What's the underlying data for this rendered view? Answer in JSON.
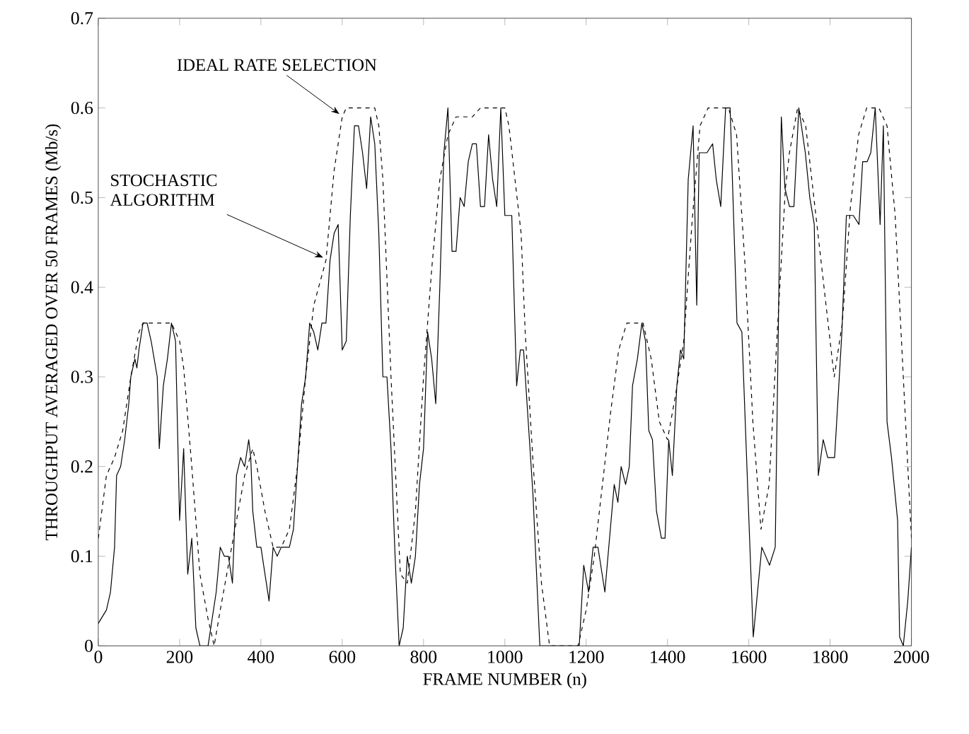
{
  "chart_data": {
    "type": "line",
    "xlabel": "FRAME NUMBER (n)",
    "ylabel": "THROUGHPUT AVERAGED OVER 50 FRAMES (Mb/s)",
    "xlim": [
      0,
      2000
    ],
    "ylim": [
      0,
      0.7
    ],
    "xticks": [
      0,
      200,
      400,
      600,
      800,
      1000,
      1200,
      1400,
      1600,
      1800,
      2000
    ],
    "yticks": [
      0,
      0.1,
      0.2,
      0.3,
      0.4,
      0.5,
      0.6,
      0.7
    ],
    "grid": false,
    "marker": "none",
    "annotations": [
      {
        "text": "IDEAL RATE SELECTION",
        "x": 600,
        "y": 0.59
      },
      {
        "text": "STOCHASTIC\nALGORITHM",
        "x": 560,
        "y": 0.43
      }
    ],
    "series": [
      {
        "color": "#000000",
        "line_style": "solid",
        "x": [
          0,
          20,
          30,
          40,
          45,
          55,
          65,
          75,
          80,
          90,
          95,
          100,
          110,
          120,
          130,
          145,
          150,
          160,
          170,
          180,
          190,
          200,
          210,
          220,
          230,
          240,
          250,
          270,
          290,
          300,
          310,
          320,
          330,
          340,
          350,
          360,
          370,
          375,
          380,
          390,
          400,
          420,
          430,
          440,
          450,
          470,
          480,
          490,
          500,
          510,
          520,
          530,
          540,
          550,
          560,
          570,
          580,
          590,
          600,
          610,
          620,
          630,
          640,
          650,
          660,
          670,
          680,
          690,
          700,
          710,
          720,
          730,
          740,
          750,
          760,
          770,
          780,
          790,
          800,
          810,
          820,
          830,
          840,
          850,
          860,
          870,
          880,
          890,
          900,
          910,
          920,
          930,
          940,
          950,
          960,
          970,
          980,
          990,
          1000,
          1017,
          1029,
          1038,
          1046,
          1069,
          1086,
          1183,
          1194,
          1206,
          1217,
          1229,
          1246,
          1269,
          1278,
          1286,
          1297,
          1306,
          1314,
          1326,
          1337,
          1346,
          1354,
          1363,
          1373,
          1385,
          1394,
          1403,
          1412,
          1423,
          1432,
          1440,
          1451,
          1463,
          1472,
          1478,
          1497,
          1511,
          1520,
          1531,
          1543,
          1554,
          1571,
          1583,
          1611,
          1632,
          1651,
          1665,
          1680,
          1689,
          1700,
          1711,
          1723,
          1739,
          1750,
          1761,
          1771,
          1783,
          1794,
          1811,
          1829,
          1840,
          1857,
          1871,
          1880,
          1891,
          1900,
          1911,
          1923,
          1931,
          1940,
          1951,
          1966,
          1971,
          1980,
          1991,
          2000
        ],
        "values": [
          0.025,
          0.04,
          0.06,
          0.11,
          0.19,
          0.2,
          0.23,
          0.27,
          0.3,
          0.32,
          0.31,
          0.33,
          0.36,
          0.36,
          0.34,
          0.3,
          0.22,
          0.29,
          0.32,
          0.36,
          0.34,
          0.14,
          0.22,
          0.08,
          0.12,
          0.02,
          0.0,
          0.0,
          0.06,
          0.11,
          0.1,
          0.1,
          0.07,
          0.19,
          0.21,
          0.2,
          0.23,
          0.21,
          0.15,
          0.11,
          0.11,
          0.05,
          0.11,
          0.1,
          0.11,
          0.11,
          0.13,
          0.2,
          0.27,
          0.3,
          0.36,
          0.35,
          0.33,
          0.36,
          0.36,
          0.43,
          0.46,
          0.47,
          0.33,
          0.34,
          0.48,
          0.58,
          0.58,
          0.55,
          0.51,
          0.59,
          0.56,
          0.46,
          0.3,
          0.3,
          0.22,
          0.1,
          0.0,
          0.02,
          0.1,
          0.07,
          0.1,
          0.18,
          0.22,
          0.35,
          0.32,
          0.27,
          0.4,
          0.55,
          0.6,
          0.44,
          0.44,
          0.5,
          0.49,
          0.54,
          0.56,
          0.56,
          0.49,
          0.49,
          0.57,
          0.52,
          0.49,
          0.6,
          0.48,
          0.48,
          0.29,
          0.33,
          0.33,
          0.17,
          0.0,
          0.0,
          0.09,
          0.06,
          0.11,
          0.11,
          0.06,
          0.18,
          0.16,
          0.2,
          0.18,
          0.2,
          0.29,
          0.32,
          0.36,
          0.34,
          0.24,
          0.23,
          0.15,
          0.12,
          0.12,
          0.23,
          0.19,
          0.29,
          0.33,
          0.32,
          0.52,
          0.58,
          0.38,
          0.55,
          0.55,
          0.56,
          0.52,
          0.49,
          0.6,
          0.6,
          0.36,
          0.35,
          0.01,
          0.11,
          0.09,
          0.11,
          0.59,
          0.51,
          0.49,
          0.49,
          0.6,
          0.55,
          0.5,
          0.47,
          0.19,
          0.23,
          0.21,
          0.21,
          0.35,
          0.48,
          0.48,
          0.47,
          0.54,
          0.54,
          0.55,
          0.6,
          0.47,
          0.58,
          0.25,
          0.21,
          0.14,
          0.01,
          0.0,
          0.05,
          0.11
        ]
      },
      {
        "color": "#000000",
        "line_style": "dashed",
        "x": [
          0,
          20,
          30,
          40,
          60,
          80,
          100,
          110,
          180,
          200,
          210,
          230,
          250,
          270,
          285,
          300,
          320,
          340,
          360,
          380,
          390,
          410,
          430,
          450,
          470,
          490,
          510,
          530,
          560,
          580,
          600,
          610,
          680,
          690,
          700,
          720,
          743,
          760,
          780,
          800,
          820,
          840,
          860,
          880,
          920,
          940,
          1000,
          1010,
          1030,
          1040,
          1050,
          1070,
          1090,
          1110,
          1180,
          1200,
          1220,
          1240,
          1260,
          1280,
          1300,
          1340,
          1360,
          1380,
          1400,
          1420,
          1440,
          1460,
          1480,
          1500,
          1550,
          1570,
          1590,
          1610,
          1630,
          1650,
          1670,
          1690,
          1700,
          1720,
          1740,
          1760,
          1790,
          1810,
          1830,
          1850,
          1870,
          1890,
          1920,
          1940,
          1960,
          1980,
          2000
        ],
        "values": [
          0.12,
          0.19,
          0.2,
          0.21,
          0.24,
          0.3,
          0.35,
          0.36,
          0.36,
          0.34,
          0.31,
          0.2,
          0.08,
          0.03,
          0.0,
          0.04,
          0.09,
          0.14,
          0.19,
          0.22,
          0.2,
          0.15,
          0.11,
          0.11,
          0.13,
          0.2,
          0.3,
          0.38,
          0.43,
          0.53,
          0.59,
          0.6,
          0.6,
          0.58,
          0.52,
          0.3,
          0.08,
          0.07,
          0.15,
          0.3,
          0.42,
          0.52,
          0.57,
          0.59,
          0.59,
          0.6,
          0.6,
          0.58,
          0.5,
          0.46,
          0.35,
          0.2,
          0.07,
          0.0,
          0.0,
          0.04,
          0.1,
          0.18,
          0.26,
          0.33,
          0.36,
          0.36,
          0.32,
          0.25,
          0.23,
          0.28,
          0.34,
          0.47,
          0.58,
          0.6,
          0.6,
          0.57,
          0.43,
          0.25,
          0.13,
          0.18,
          0.35,
          0.51,
          0.55,
          0.6,
          0.58,
          0.5,
          0.38,
          0.3,
          0.36,
          0.49,
          0.57,
          0.6,
          0.6,
          0.58,
          0.48,
          0.3,
          0.12
        ]
      }
    ]
  }
}
